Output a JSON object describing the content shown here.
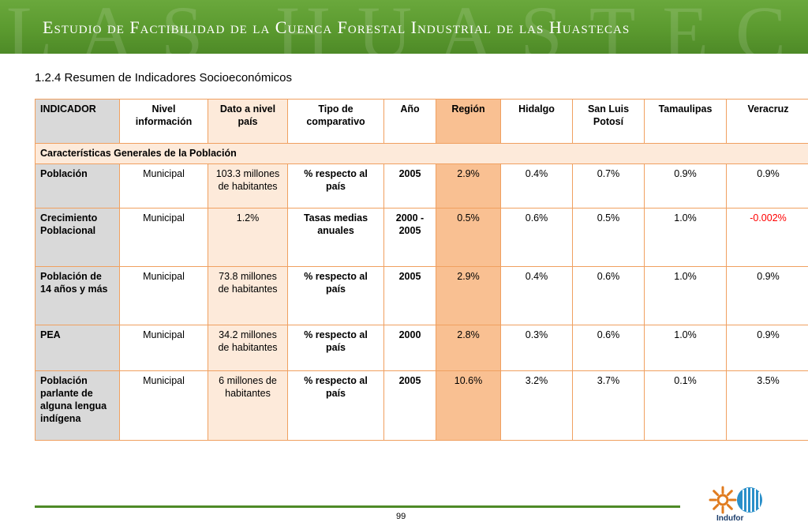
{
  "header": {
    "watermark": "LAS HUASTECAS",
    "title": "Estudio de Factibilidad de la Cuenca Forestal Industrial de las Huastecas"
  },
  "section_title": "1.2.4 Resumen de Indicadores Socioeconómicos",
  "table": {
    "headers": [
      "INDICADOR",
      "Nivel información",
      "Dato a nivel país",
      "Tipo de comparativo",
      "Año",
      "Región",
      "Hidalgo",
      "San Luis Potosí",
      "Tamaulipas",
      "Veracruz"
    ],
    "section_label": "Características Generales de la Población",
    "rows": [
      {
        "indicador": "Población",
        "nivel": "Municipal",
        "dato": "103.3 millones de habitantes",
        "tipo": "% respecto al país",
        "anio": "2005",
        "region": "2.9%",
        "hidalgo": "0.4%",
        "slp": "0.7%",
        "tamaulipas": "0.9%",
        "veracruz": "0.9%"
      },
      {
        "indicador": "Crecimiento Poblacional",
        "nivel": "Municipal",
        "dato": "1.2%",
        "tipo": "Tasas medias anuales",
        "anio": "2000 - 2005",
        "region": "0.5%",
        "hidalgo": "0.6%",
        "slp": "0.5%",
        "tamaulipas": "1.0%",
        "veracruz": "-0.002%"
      },
      {
        "indicador": "Población de 14 años y más",
        "nivel": "Municipal",
        "dato": "73.8 millones de habitantes",
        "tipo": "% respecto al país",
        "anio": "2005",
        "region": "2.9%",
        "hidalgo": "0.4%",
        "slp": "0.6%",
        "tamaulipas": "1.0%",
        "veracruz": "0.9%"
      },
      {
        "indicador": "PEA",
        "nivel": "Municipal",
        "dato": "34.2 millones de habitantes",
        "tipo": "% respecto al país",
        "anio": "2000",
        "region": "2.8%",
        "hidalgo": "0.3%",
        "slp": "0.6%",
        "tamaulipas": "1.0%",
        "veracruz": "0.9%"
      },
      {
        "indicador": "Población parlante de alguna lengua indígena",
        "nivel": "Municipal",
        "dato": "6 millones de habitantes",
        "tipo": "% respecto al país",
        "anio": "2005",
        "region": "10.6%",
        "hidalgo": "3.2%",
        "slp": "3.7%",
        "tamaulipas": "0.1%",
        "veracruz": "3.5%"
      }
    ]
  },
  "footer": {
    "page_number": "99",
    "logo_text": "Indufor"
  },
  "colors": {
    "banner_green": "#5b9a2f",
    "table_border": "#f0a060",
    "region_fill": "#f9c092",
    "pais_fill": "#fdeada",
    "indicator_fill": "#d9d9d9",
    "negative_value": "#ff0000"
  },
  "icons": {
    "logo": "indufor-logo-icon"
  }
}
